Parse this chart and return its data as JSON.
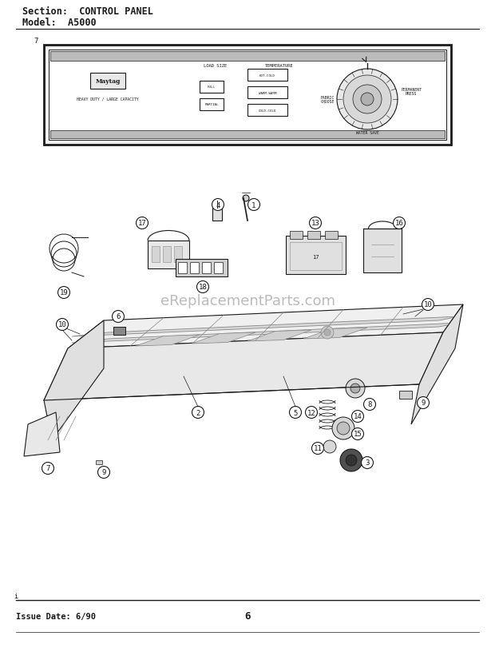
{
  "title1": "Section:  CONTROL PANEL",
  "title2": "Model:  A5000",
  "issue_date": "Issue Date: 6/90",
  "page_number": "6",
  "watermark": "eReplacementParts.com",
  "bg_color": "#ffffff",
  "lc": "#1a1a1a",
  "gray": "#888888"
}
